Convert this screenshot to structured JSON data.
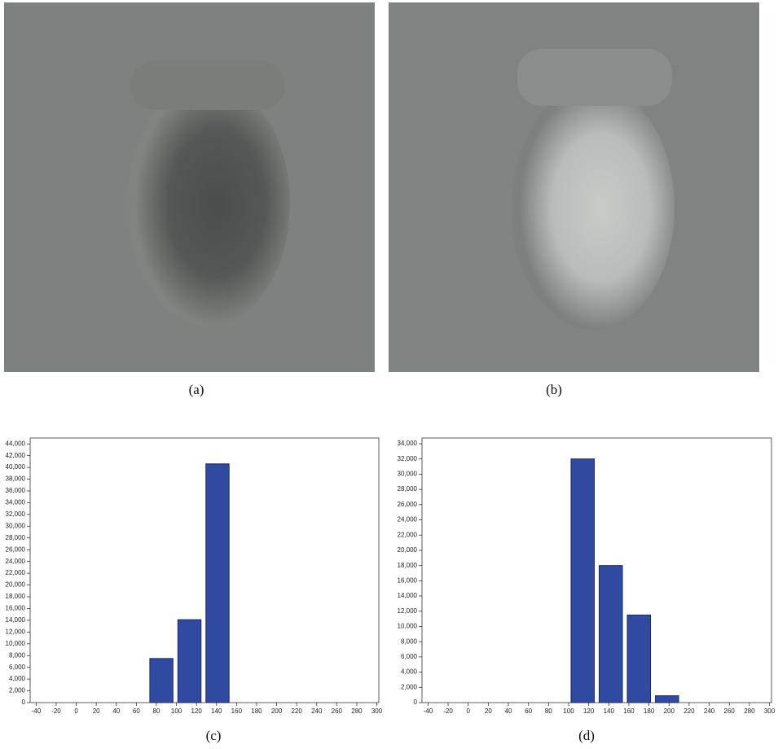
{
  "captions": [
    "(a)",
    "(b)",
    "(c)",
    "(d)"
  ],
  "chart_data": [
    {
      "type": "histogram",
      "color": "#2f4aa0",
      "edge_color": "#1a2a6a",
      "bins": [
        71,
        99,
        127,
        155
      ],
      "values": [
        7500,
        14100,
        40600
      ],
      "xlim": [
        -46,
        302
      ],
      "ylim": [
        0,
        45000
      ],
      "xticks": [
        -40,
        -20,
        0,
        20,
        40,
        60,
        80,
        100,
        120,
        140,
        160,
        180,
        200,
        220,
        240,
        260,
        280,
        300
      ],
      "yticks": [
        0,
        {
          "value": 2000,
          "label": "2,000"
        },
        {
          "value": 4000,
          "label": "4,000"
        },
        {
          "value": 6000,
          "label": "6,000"
        },
        {
          "value": 8000,
          "label": "8,000"
        },
        {
          "value": 10000,
          "label": "10,000"
        },
        {
          "value": 12000,
          "label": "12,000"
        },
        {
          "value": 14000,
          "label": "14,000"
        },
        {
          "value": 16000,
          "label": "16,000"
        },
        {
          "value": 18000,
          "label": "18,000"
        },
        {
          "value": 20000,
          "label": "20,000"
        },
        {
          "value": 22000,
          "label": "22,000"
        },
        {
          "value": 24000,
          "label": "24,000"
        },
        {
          "value": 26000,
          "label": "26,000"
        },
        {
          "value": 28000,
          "label": "28,000"
        },
        {
          "value": 30000,
          "label": "30,000"
        },
        {
          "value": 32000,
          "label": "32,000"
        },
        {
          "value": 34000,
          "label": "34,000"
        },
        {
          "value": 36000,
          "label": "36,000"
        },
        {
          "value": 38000,
          "label": "38,000"
        },
        {
          "value": 40000,
          "label": "40,000"
        },
        {
          "value": 42000,
          "label": "42,000"
        },
        {
          "value": 44000,
          "label": "44,000"
        }
      ],
      "grid": false
    },
    {
      "type": "histogram",
      "color": "#2f4aa0",
      "edge_color": "#1a2a6a",
      "bins": [
        100,
        128,
        156,
        184,
        212
      ],
      "values": [
        32000,
        18000,
        11500,
        900
      ],
      "xlim": [
        -46,
        302
      ],
      "ylim": [
        0,
        34750
      ],
      "xticks": [
        -40,
        -20,
        0,
        20,
        40,
        60,
        80,
        100,
        120,
        140,
        160,
        180,
        200,
        220,
        240,
        260,
        280,
        300
      ],
      "yticks": [
        0,
        {
          "value": 2000,
          "label": "2,000"
        },
        {
          "value": 4000,
          "label": "4,000"
        },
        {
          "value": 6000,
          "label": "6,000"
        },
        {
          "value": 8000,
          "label": "8,000"
        },
        {
          "value": 10000,
          "label": "10,000"
        },
        {
          "value": 12000,
          "label": "12,000"
        },
        {
          "value": 14000,
          "label": "14,000"
        },
        {
          "value": 16000,
          "label": "16,000"
        },
        {
          "value": 18000,
          "label": "18,000"
        },
        {
          "value": 20000,
          "label": "20,000"
        },
        {
          "value": 22000,
          "label": "22,000"
        },
        {
          "value": 24000,
          "label": "24,000"
        },
        {
          "value": 26000,
          "label": "26,000"
        },
        {
          "value": 28000,
          "label": "28,000"
        },
        {
          "value": 30000,
          "label": "30,000"
        },
        {
          "value": 32000,
          "label": "32,000"
        },
        {
          "value": 34000,
          "label": "34,000"
        }
      ],
      "grid": false
    }
  ]
}
